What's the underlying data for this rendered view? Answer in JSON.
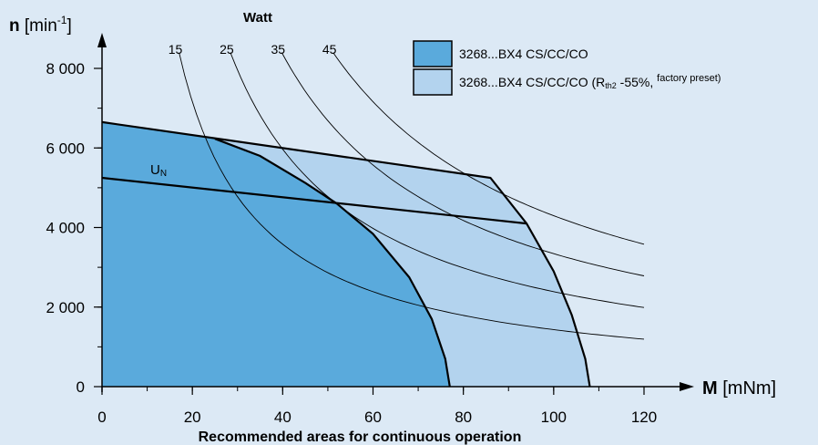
{
  "chart_data": {
    "type": "area",
    "title": "Recommended areas for continuous operation",
    "xlabel": {
      "symbol": "M",
      "unit": "[mNm]"
    },
    "ylabel": {
      "symbol": "n",
      "unit_prefix": "[min",
      "unit_sup": "-1",
      "unit_suffix": "]"
    },
    "xlim": [
      0,
      120
    ],
    "ylim": [
      0,
      8000
    ],
    "x_ticks": [
      {
        "value": 0,
        "label": "0"
      },
      {
        "value": 20,
        "label": "20"
      },
      {
        "value": 40,
        "label": "40"
      },
      {
        "value": 60,
        "label": "60"
      },
      {
        "value": 80,
        "label": "80"
      },
      {
        "value": 100,
        "label": "100"
      },
      {
        "value": 120,
        "label": "120"
      }
    ],
    "y_ticks": [
      {
        "value": 0,
        "label": "0"
      },
      {
        "value": 2000,
        "label": "2 000"
      },
      {
        "value": 4000,
        "label": "4 000"
      },
      {
        "value": 6000,
        "label": "6 000"
      },
      {
        "value": 8000,
        "label": "8 000"
      }
    ],
    "grid": false,
    "legend_position": "top-right",
    "series": [
      {
        "name": "3268...BX4 CS/CC/CO",
        "color": "#5aaadc",
        "points": [
          [
            0,
            6650
          ],
          [
            10,
            6480
          ],
          [
            20,
            6310
          ],
          [
            25,
            6230
          ],
          [
            35,
            5800
          ],
          [
            45,
            5120
          ],
          [
            52,
            4600
          ],
          [
            60,
            3840
          ],
          [
            68,
            2750
          ],
          [
            73,
            1700
          ],
          [
            76,
            700
          ],
          [
            77,
            0
          ]
        ]
      },
      {
        "name": "3268...BX4 CS/CC/CO (R",
        "name_sub": "th2",
        "name_mid": " -55%, ",
        "name_sup": "factory preset)",
        "color": "#b3d3ee",
        "points": [
          [
            0,
            6650
          ],
          [
            86,
            5250
          ],
          [
            94,
            4100
          ],
          [
            100,
            2900
          ],
          [
            104,
            1800
          ],
          [
            107,
            700
          ],
          [
            108,
            0
          ]
        ]
      }
    ],
    "un_line": {
      "label": "U",
      "label_sub": "N",
      "points": [
        [
          0,
          5250
        ],
        [
          94,
          4100
        ]
      ]
    },
    "power_curves": {
      "group_label": "Watt",
      "curves": [
        {
          "label": "15",
          "watts": 15
        },
        {
          "label": "25",
          "watts": 25
        },
        {
          "label": "35",
          "watts": 35
        },
        {
          "label": "45",
          "watts": 45
        }
      ]
    },
    "colors": {
      "background": "#dce9f5",
      "outline": "#000000"
    }
  }
}
